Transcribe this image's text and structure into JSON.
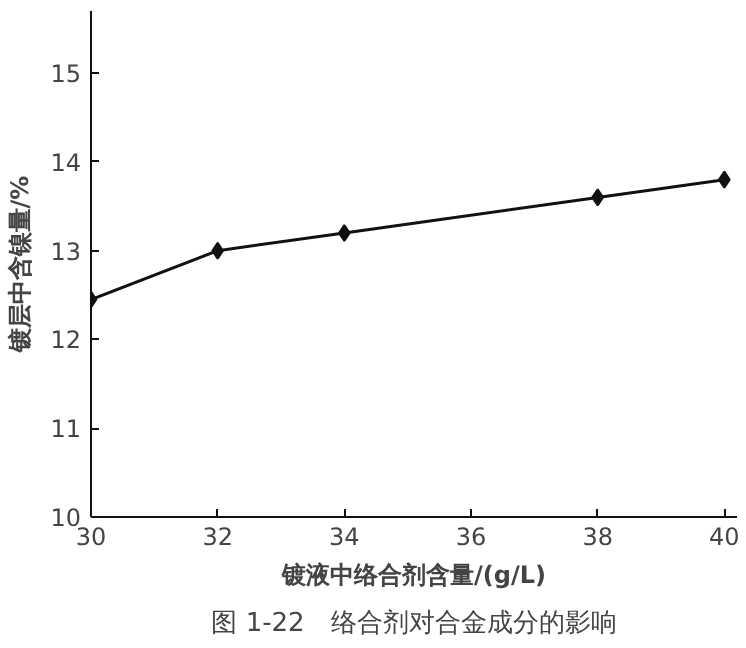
{
  "chart_data": {
    "type": "line",
    "title": "图 1-22　络合剂对合金成分的影响",
    "xlabel": "镀液中络合剂含量/(g/L)",
    "ylabel": "镀层中含镍量/%",
    "x": [
      30,
      32,
      34,
      38,
      40
    ],
    "series": [
      {
        "color": "#111111",
        "values": [
          12.45,
          13.0,
          13.2,
          13.6,
          13.8
        ]
      }
    ],
    "xlim": [
      30,
      40.2
    ],
    "ylim": [
      10,
      15.7
    ],
    "xticks": [
      30,
      32,
      34,
      36,
      38,
      40
    ],
    "yticks": [
      10,
      11,
      12,
      13,
      14,
      15
    ],
    "grid": false,
    "marker": "diamond",
    "line_style": "solid"
  }
}
